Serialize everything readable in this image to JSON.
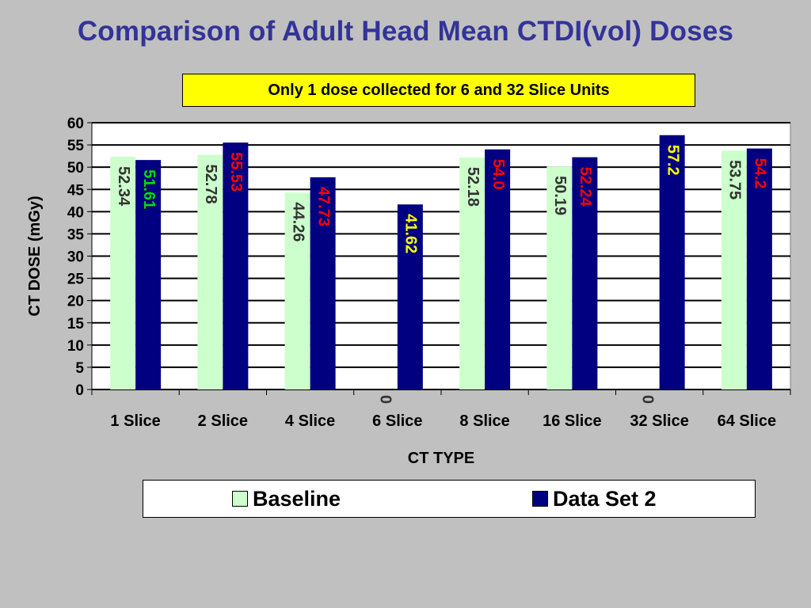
{
  "title": "Comparison of Adult Head Mean CTDI(vol) Doses",
  "note": "Only 1 dose collected for 6 and 32 Slice Units",
  "colors": {
    "background": "#c0c0c0",
    "title": "#333399",
    "note_bg": "#ffff00",
    "baseline": "#ccffcc",
    "dataset2": "#000080"
  },
  "chart_data": {
    "type": "bar",
    "title": "Comparison of Adult Head Mean CTDI(vol) Doses",
    "xlabel": "CT TYPE",
    "ylabel": "CT DOSE (mGy)",
    "ylim": [
      0,
      60
    ],
    "yticks": [
      0,
      5,
      10,
      15,
      20,
      25,
      30,
      35,
      40,
      45,
      50,
      55,
      60
    ],
    "grid": true,
    "legend_position": "bottom",
    "categories": [
      "1 Slice",
      "2 Slice",
      "4 Slice",
      "6 Slice",
      "8 Slice",
      "16 Slice",
      "32 Slice",
      "64 Slice"
    ],
    "series": [
      {
        "name": "Baseline",
        "color": "#ccffcc",
        "values": [
          52.34,
          52.78,
          44.26,
          0,
          52.18,
          50.19,
          0,
          53.75
        ],
        "labels": [
          "52.34",
          "52.78",
          "44.26",
          "0",
          "52.18",
          "50.19",
          "0",
          "53.75"
        ],
        "label_colors": [
          "#333333",
          "#333333",
          "#333333",
          "#333333",
          "#333333",
          "#333333",
          "#333333",
          "#333333"
        ]
      },
      {
        "name": "Data Set 2",
        "color": "#000080",
        "values": [
          51.61,
          55.53,
          47.73,
          41.62,
          54.0,
          52.24,
          57.2,
          54.2
        ],
        "labels": [
          "51.61",
          "55.53",
          "47.73",
          "41.62",
          "54.0",
          "52.24",
          "57.2",
          "54.2"
        ],
        "label_colors": [
          "#00dd00",
          "#ff0000",
          "#ff0000",
          "#ffff00",
          "#ff0000",
          "#ff0000",
          "#ffff00",
          "#ff0000"
        ]
      }
    ]
  }
}
